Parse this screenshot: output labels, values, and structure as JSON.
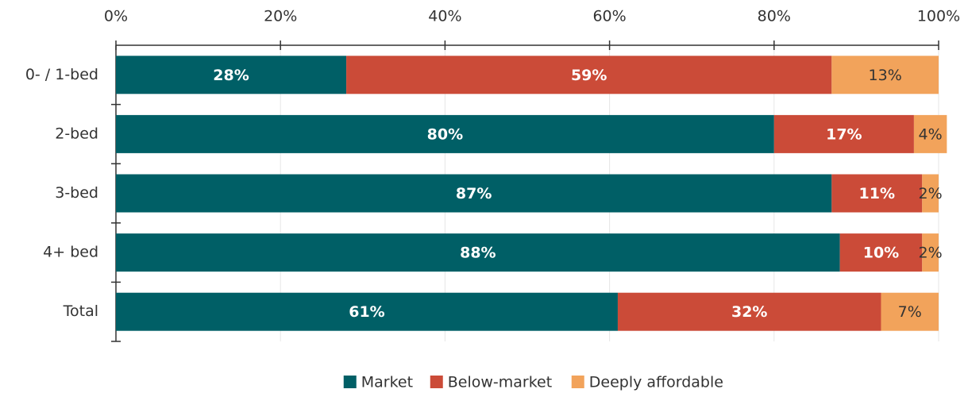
{
  "chart_data": {
    "type": "stacked-barh",
    "categories": [
      "0- / 1-bed",
      "2-bed",
      "3-bed",
      "4+ bed",
      "Total"
    ],
    "series": [
      {
        "name": "Market",
        "color": "#005f66",
        "values": [
          28,
          80,
          87,
          88,
          61
        ],
        "value_labels": [
          "28%",
          "80%",
          "87%",
          "88%",
          "61%"
        ]
      },
      {
        "name": "Below-market",
        "color": "#cb4b38",
        "values": [
          59,
          17,
          11,
          10,
          32
        ],
        "value_labels": [
          "59%",
          "17%",
          "11%",
          "10%",
          "32%"
        ]
      },
      {
        "name": "Deeply affordable",
        "color": "#f2a35b",
        "values": [
          13,
          4,
          2,
          2,
          7
        ],
        "value_labels": [
          "13%",
          "4%",
          "2%",
          "2%",
          "7%"
        ]
      }
    ],
    "xlim": [
      0,
      100
    ],
    "xticks": [
      {
        "value": 0,
        "label": "0%"
      },
      {
        "value": 20,
        "label": "20%"
      },
      {
        "value": 40,
        "label": "40%"
      },
      {
        "value": 60,
        "label": "60%"
      },
      {
        "value": 80,
        "label": "80%"
      },
      {
        "value": 100,
        "label": "100%"
      }
    ],
    "grid": true,
    "legend": "bottom"
  }
}
